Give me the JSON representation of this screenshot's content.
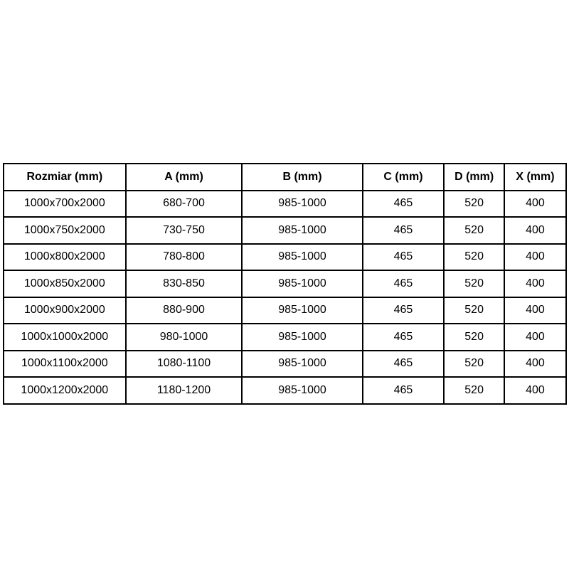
{
  "colors": {
    "background": "#ffffff",
    "border": "#000000",
    "text": "#000000"
  },
  "table": {
    "columns": [
      "Rozmiar (mm)",
      "A (mm)",
      "B (mm)",
      "C (mm)",
      "D (mm)",
      "X (mm)"
    ],
    "rows": [
      [
        "1000x700x2000",
        "680-700",
        "985-1000",
        "465",
        "520",
        "400"
      ],
      [
        "1000x750x2000",
        "730-750",
        "985-1000",
        "465",
        "520",
        "400"
      ],
      [
        "1000x800x2000",
        "780-800",
        "985-1000",
        "465",
        "520",
        "400"
      ],
      [
        "1000x850x2000",
        "830-850",
        "985-1000",
        "465",
        "520",
        "400"
      ],
      [
        "1000x900x2000",
        "880-900",
        "985-1000",
        "465",
        "520",
        "400"
      ],
      [
        "1000x1000x2000",
        "980-1000",
        "985-1000",
        "465",
        "520",
        "400"
      ],
      [
        "1000x1100x2000",
        "1080-1100",
        "985-1000",
        "465",
        "520",
        "400"
      ],
      [
        "1000x1200x2000",
        "1180-1200",
        "985-1000",
        "465",
        "520",
        "400"
      ]
    ]
  }
}
